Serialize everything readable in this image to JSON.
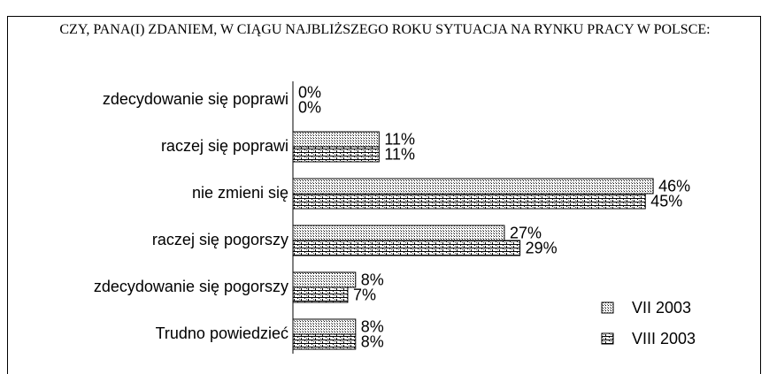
{
  "chart_data": {
    "type": "bar",
    "orientation": "horizontal",
    "title": "CZY, PANA(I) ZDANIEM, W CIĄGU NAJBLIŻSZEGO ROKU SYTUACJA NA RYNKU PRACY W POLSCE:",
    "categories": [
      "zdecydowanie się poprawi",
      "raczej się poprawi",
      "nie zmieni się",
      "raczej się pogorszy",
      "zdecydowanie się pogorszy",
      "Trudno powiedzieć"
    ],
    "series": [
      {
        "name": "VII 2003",
        "values": [
          0,
          11,
          46,
          27,
          8,
          8
        ],
        "value_labels": [
          "0%",
          "11%",
          "46%",
          "27%",
          "8%",
          "8%"
        ]
      },
      {
        "name": "VIII 2003",
        "values": [
          0,
          11,
          45,
          29,
          7,
          8
        ],
        "value_labels": [
          "0%",
          "11%",
          "45%",
          "29%",
          "7%",
          "8%"
        ]
      }
    ],
    "xlim": [
      0,
      60
    ],
    "legend": "lower right"
  }
}
